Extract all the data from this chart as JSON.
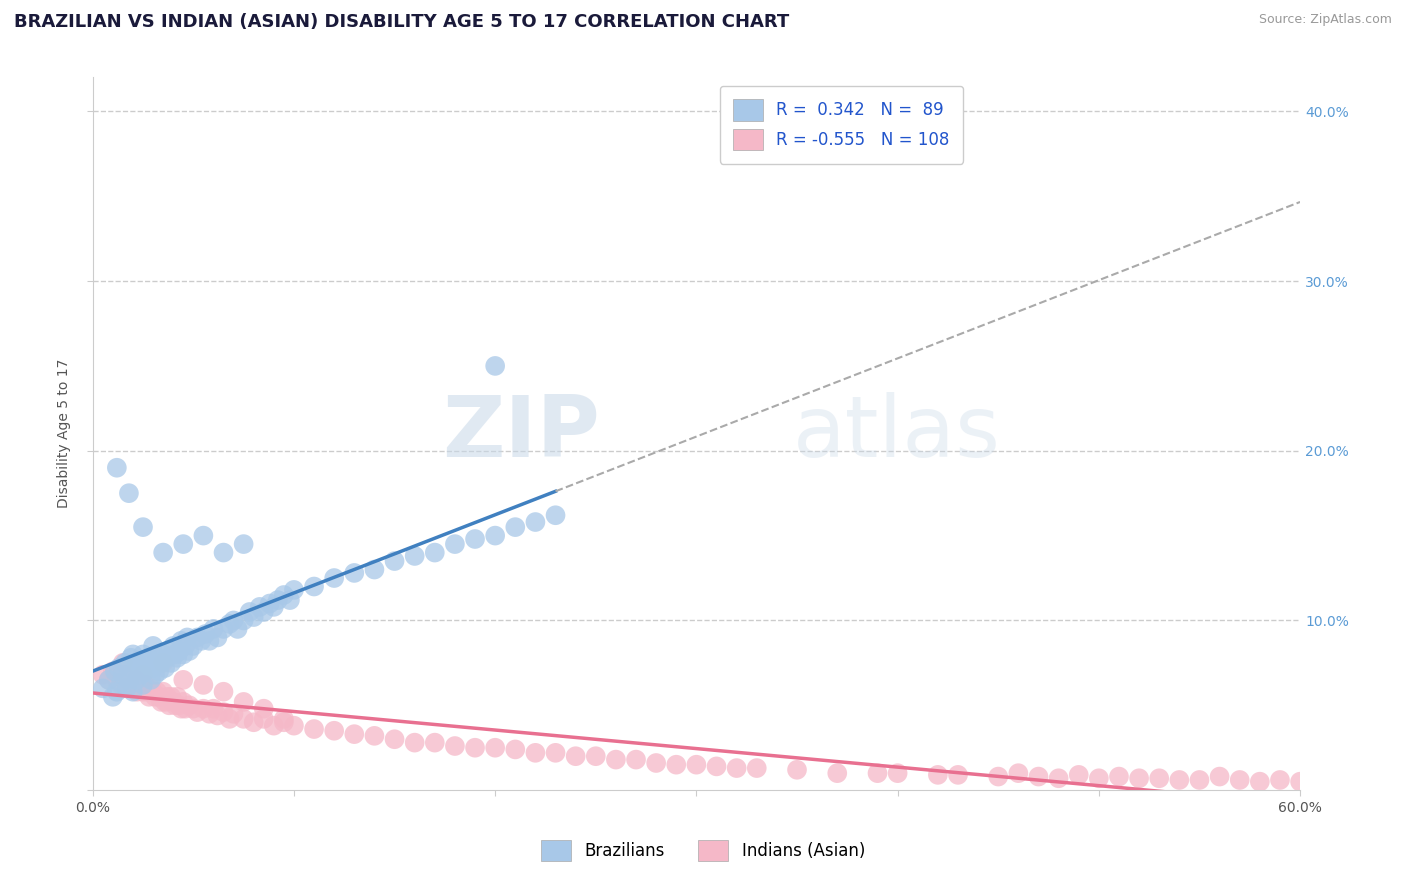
{
  "title": "BRAZILIAN VS INDIAN (ASIAN) DISABILITY AGE 5 TO 17 CORRELATION CHART",
  "source_text": "Source: ZipAtlas.com",
  "ylabel": "Disability Age 5 to 17",
  "xlim": [
    0.0,
    0.6
  ],
  "ylim": [
    0.0,
    0.42
  ],
  "x_ticks": [
    0.0,
    0.1,
    0.2,
    0.3,
    0.4,
    0.5,
    0.6
  ],
  "x_tick_labels": [
    "0.0%",
    "",
    "",
    "",
    "",
    "",
    "60.0%"
  ],
  "y_ticks": [
    0.0,
    0.1,
    0.2,
    0.3,
    0.4
  ],
  "right_y_tick_labels": [
    "",
    "10.0%",
    "20.0%",
    "30.0%",
    "40.0%"
  ],
  "grid_color": "#cccccc",
  "background_color": "#ffffff",
  "blue_color": "#a8c8e8",
  "pink_color": "#f5b8c8",
  "blue_line_color": "#4080c0",
  "pink_line_color": "#e87090",
  "dashed_color": "#aaaaaa",
  "R_blue": 0.342,
  "N_blue": 89,
  "R_pink": -0.555,
  "N_pink": 108,
  "legend_label_blue": "Brazilians",
  "legend_label_pink": "Indians (Asian)",
  "watermark_zip": "ZIP",
  "watermark_atlas": "atlas",
  "title_fontsize": 13,
  "axis_label_fontsize": 10,
  "tick_fontsize": 10,
  "legend_fontsize": 12,
  "blue_scatter_x": [
    0.005,
    0.008,
    0.01,
    0.011,
    0.012,
    0.013,
    0.014,
    0.015,
    0.016,
    0.017,
    0.018,
    0.019,
    0.02,
    0.02,
    0.021,
    0.022,
    0.022,
    0.023,
    0.024,
    0.025,
    0.025,
    0.026,
    0.027,
    0.028,
    0.029,
    0.03,
    0.03,
    0.031,
    0.032,
    0.033,
    0.034,
    0.035,
    0.036,
    0.037,
    0.038,
    0.039,
    0.04,
    0.041,
    0.042,
    0.043,
    0.044,
    0.045,
    0.046,
    0.047,
    0.048,
    0.05,
    0.052,
    0.054,
    0.056,
    0.058,
    0.06,
    0.062,
    0.065,
    0.068,
    0.07,
    0.072,
    0.075,
    0.078,
    0.08,
    0.083,
    0.085,
    0.088,
    0.09,
    0.092,
    0.095,
    0.098,
    0.1,
    0.11,
    0.12,
    0.13,
    0.14,
    0.15,
    0.16,
    0.17,
    0.18,
    0.19,
    0.2,
    0.21,
    0.22,
    0.23,
    0.012,
    0.018,
    0.025,
    0.035,
    0.045,
    0.055,
    0.065,
    0.075,
    0.2
  ],
  "blue_scatter_y": [
    0.06,
    0.065,
    0.055,
    0.07,
    0.058,
    0.072,
    0.063,
    0.068,
    0.075,
    0.06,
    0.065,
    0.078,
    0.058,
    0.08,
    0.07,
    0.065,
    0.075,
    0.072,
    0.068,
    0.062,
    0.08,
    0.07,
    0.075,
    0.078,
    0.065,
    0.072,
    0.085,
    0.068,
    0.078,
    0.07,
    0.075,
    0.08,
    0.072,
    0.078,
    0.082,
    0.075,
    0.085,
    0.08,
    0.078,
    0.082,
    0.088,
    0.08,
    0.085,
    0.09,
    0.082,
    0.085,
    0.09,
    0.088,
    0.092,
    0.088,
    0.095,
    0.09,
    0.095,
    0.098,
    0.1,
    0.095,
    0.1,
    0.105,
    0.102,
    0.108,
    0.105,
    0.11,
    0.108,
    0.112,
    0.115,
    0.112,
    0.118,
    0.12,
    0.125,
    0.128,
    0.13,
    0.135,
    0.138,
    0.14,
    0.145,
    0.148,
    0.15,
    0.155,
    0.158,
    0.162,
    0.19,
    0.175,
    0.155,
    0.14,
    0.145,
    0.15,
    0.14,
    0.145,
    0.25
  ],
  "pink_scatter_x": [
    0.005,
    0.008,
    0.01,
    0.012,
    0.013,
    0.014,
    0.015,
    0.016,
    0.017,
    0.018,
    0.019,
    0.02,
    0.021,
    0.022,
    0.023,
    0.024,
    0.025,
    0.026,
    0.027,
    0.028,
    0.029,
    0.03,
    0.031,
    0.032,
    0.033,
    0.034,
    0.035,
    0.036,
    0.037,
    0.038,
    0.039,
    0.04,
    0.041,
    0.042,
    0.043,
    0.044,
    0.045,
    0.046,
    0.048,
    0.05,
    0.052,
    0.055,
    0.058,
    0.06,
    0.062,
    0.065,
    0.068,
    0.07,
    0.075,
    0.08,
    0.085,
    0.09,
    0.095,
    0.1,
    0.11,
    0.12,
    0.13,
    0.14,
    0.15,
    0.16,
    0.17,
    0.18,
    0.19,
    0.2,
    0.21,
    0.22,
    0.23,
    0.24,
    0.25,
    0.26,
    0.27,
    0.28,
    0.29,
    0.3,
    0.31,
    0.32,
    0.33,
    0.35,
    0.37,
    0.39,
    0.4,
    0.42,
    0.43,
    0.45,
    0.46,
    0.47,
    0.48,
    0.49,
    0.5,
    0.51,
    0.52,
    0.53,
    0.54,
    0.55,
    0.56,
    0.57,
    0.58,
    0.59,
    0.6,
    0.015,
    0.025,
    0.035,
    0.045,
    0.055,
    0.065,
    0.075,
    0.085,
    0.095
  ],
  "pink_scatter_y": [
    0.068,
    0.065,
    0.07,
    0.065,
    0.068,
    0.062,
    0.068,
    0.065,
    0.06,
    0.065,
    0.062,
    0.06,
    0.065,
    0.058,
    0.062,
    0.06,
    0.058,
    0.062,
    0.058,
    0.055,
    0.06,
    0.058,
    0.055,
    0.058,
    0.055,
    0.052,
    0.058,
    0.052,
    0.055,
    0.05,
    0.055,
    0.052,
    0.05,
    0.055,
    0.05,
    0.048,
    0.052,
    0.048,
    0.05,
    0.048,
    0.046,
    0.048,
    0.045,
    0.048,
    0.044,
    0.046,
    0.042,
    0.045,
    0.042,
    0.04,
    0.042,
    0.038,
    0.04,
    0.038,
    0.036,
    0.035,
    0.033,
    0.032,
    0.03,
    0.028,
    0.028,
    0.026,
    0.025,
    0.025,
    0.024,
    0.022,
    0.022,
    0.02,
    0.02,
    0.018,
    0.018,
    0.016,
    0.015,
    0.015,
    0.014,
    0.013,
    0.013,
    0.012,
    0.01,
    0.01,
    0.01,
    0.009,
    0.009,
    0.008,
    0.01,
    0.008,
    0.007,
    0.009,
    0.007,
    0.008,
    0.007,
    0.007,
    0.006,
    0.006,
    0.008,
    0.006,
    0.005,
    0.006,
    0.005,
    0.075,
    0.068,
    0.075,
    0.065,
    0.062,
    0.058,
    0.052,
    0.048,
    0.042
  ]
}
